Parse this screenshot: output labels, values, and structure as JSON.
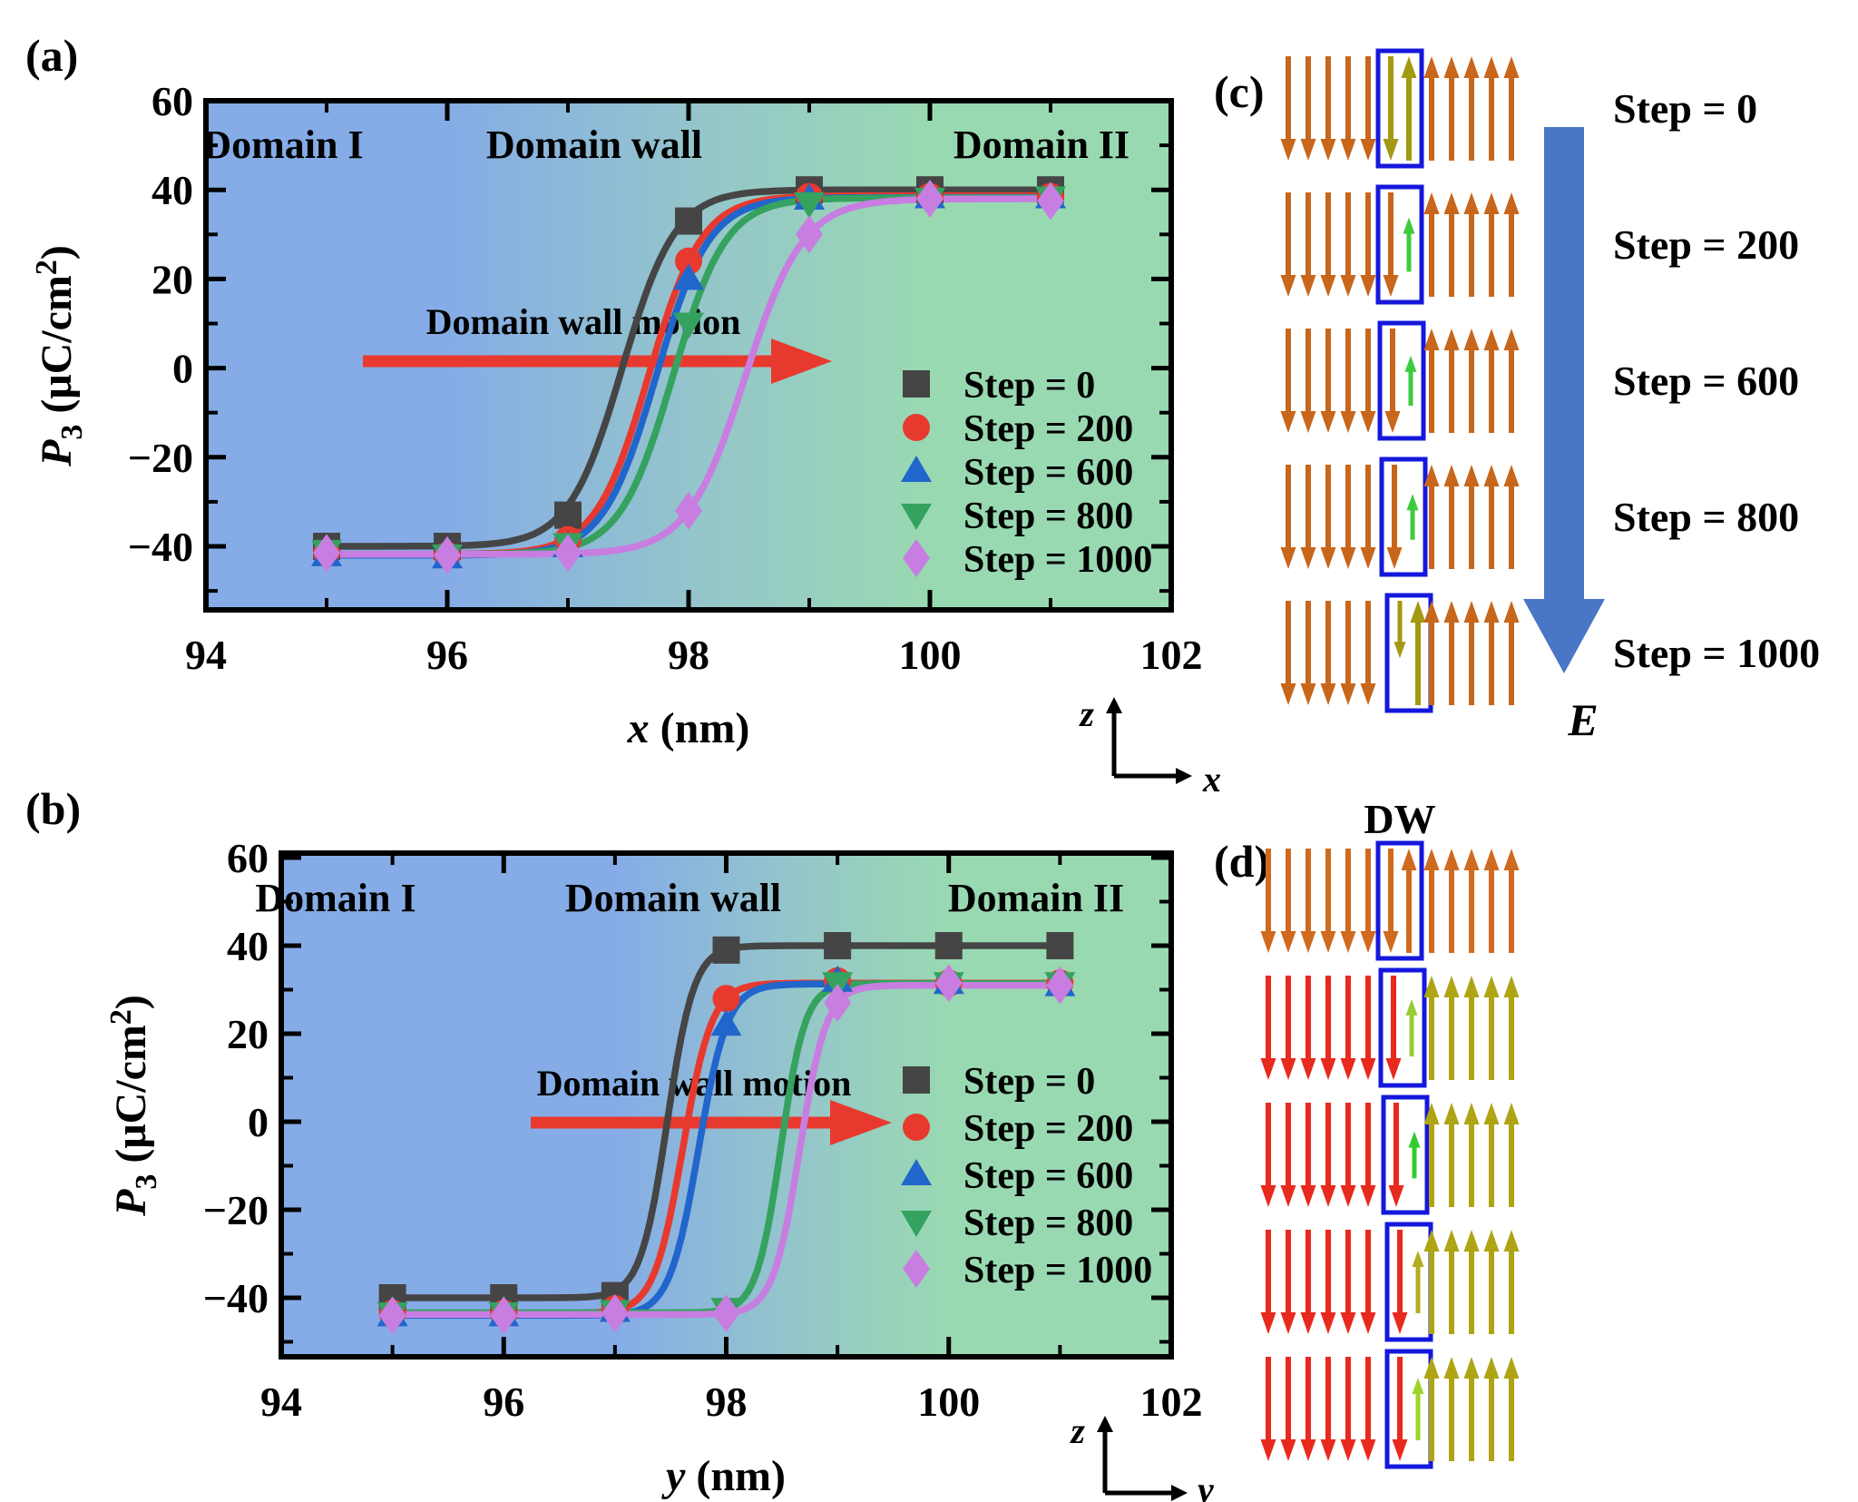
{
  "figure": {
    "bg": "#ffffff"
  },
  "colors": {
    "region_blue": "#85ACE6",
    "region_teal": "#95C6CA",
    "region_green": "#99D9B1",
    "domain_text_blue": "#2A5C9C",
    "domain_text_green": "#2E6E55",
    "annotation_red": "#E8392F",
    "dw_box": "#1418DC",
    "dw_text": "#1A1AE8",
    "e_arrow": "#4A76C6",
    "axis_black": "#000000"
  },
  "panels": {
    "a": {
      "label": "(a)",
      "regions": [
        {
          "text": "Domain I",
          "color": "#2A5C9C"
        },
        {
          "text": "Domain wall",
          "color": "#2A5C9C"
        },
        {
          "text": "Domain II",
          "color": "#2E6E55"
        }
      ],
      "annotation": {
        "text": "Domain wall motion",
        "color": "#E8392F"
      },
      "x_title_var": "x",
      "x_title_unit": " (nm)",
      "y_title": {
        "var": "P",
        "sub": "3",
        "mid": " (μC/cm",
        "sup": "2",
        "end": ")"
      }
    },
    "b": {
      "label": "(b)",
      "regions": [
        {
          "text": "Domain I",
          "color": "#2A5C9C"
        },
        {
          "text": "Domain wall",
          "color": "#2A5C9C"
        },
        {
          "text": "Domain II",
          "color": "#2E6E55"
        }
      ],
      "annotation": {
        "text": "Domain wall motion",
        "color": "#E8392F"
      },
      "x_title_var": "y",
      "x_title_unit": " (nm)",
      "y_title": {
        "var": "P",
        "sub": "3",
        "mid": " (μC/cm",
        "sup": "2",
        "end": ")"
      }
    },
    "c": {
      "label": "(c)",
      "step_labels": [
        "Step = 0",
        "Step = 200",
        "Step = 600",
        "Step = 800",
        "Step = 1000"
      ],
      "field_label": "E",
      "axis": {
        "v": "z",
        "h": "x"
      },
      "rows": [
        {
          "step": "Step = 0",
          "left": {
            "count": 5,
            "color": "#C8661B"
          },
          "box": {
            "dx": 0,
            "arrows": [
              {
                "dir": "down",
                "color": "#A39913",
                "frac": 1
              },
              {
                "dir": "up",
                "color": "#A39913",
                "frac": 1
              }
            ]
          },
          "right": {
            "count": 5,
            "color": "#C8661B"
          }
        },
        {
          "step": "Step = 200",
          "left": {
            "count": 5,
            "color": "#C8661B"
          },
          "box": {
            "dx": 0,
            "arrows": [
              {
                "dir": "down",
                "color": "#C8661B",
                "frac": 1
              },
              {
                "dir": "up",
                "color": "#3DCB3D",
                "frac": 0.52
              }
            ]
          },
          "right": {
            "count": 5,
            "color": "#C8661B"
          }
        },
        {
          "step": "Step = 600",
          "left": {
            "count": 5,
            "color": "#C8661B"
          },
          "box": {
            "dx": 2,
            "arrows": [
              {
                "dir": "down",
                "color": "#C8661B",
                "frac": 1
              },
              {
                "dir": "up",
                "color": "#3DCB3D",
                "frac": 0.48
              }
            ]
          },
          "right": {
            "count": 5,
            "color": "#C8661B"
          }
        },
        {
          "step": "Step = 800",
          "left": {
            "count": 5,
            "color": "#C8661B"
          },
          "box": {
            "dx": 4,
            "arrows": [
              {
                "dir": "down",
                "color": "#C8661B",
                "frac": 1
              },
              {
                "dir": "up",
                "color": "#3DCB3D",
                "frac": 0.44
              }
            ]
          },
          "right": {
            "count": 5,
            "color": "#C8661B"
          }
        },
        {
          "step": "Step = 1000",
          "left": {
            "count": 5,
            "color": "#C8661B"
          },
          "box": {
            "dx": 10,
            "arrows": [
              {
                "dir": "down",
                "color": "#A39913",
                "frac": 0.55,
                "align": "top"
              },
              {
                "dir": "up",
                "color": "#A39913",
                "frac": 1
              }
            ]
          },
          "right": {
            "count": 5,
            "color": "#C8661B"
          }
        }
      ]
    },
    "d": {
      "label": "(d)",
      "dw": "DW",
      "axis": {
        "v": "z",
        "h": "y"
      },
      "rows": [
        {
          "left": {
            "count": 6,
            "color": "#D06A1E"
          },
          "box": {
            "dx": 0,
            "arrows": [
              {
                "dir": "down",
                "color": "#D06A1E",
                "frac": 1
              },
              {
                "dir": "up",
                "color": "#D06A1E",
                "frac": 1
              }
            ]
          },
          "right": {
            "count": 5,
            "color": "#D06A1E"
          }
        },
        {
          "left": {
            "count": 6,
            "color": "#E8291D"
          },
          "box": {
            "dx": 3,
            "arrows": [
              {
                "dir": "down",
                "color": "#E8291D",
                "frac": 1
              },
              {
                "dir": "up",
                "color": "#99CC33",
                "frac": 0.55
              }
            ]
          },
          "right": {
            "count": 5,
            "color": "#AFA414"
          }
        },
        {
          "left": {
            "count": 6,
            "color": "#E8291D"
          },
          "box": {
            "dx": 6,
            "arrows": [
              {
                "dir": "down",
                "color": "#E8291D",
                "frac": 1
              },
              {
                "dir": "up",
                "color": "#2FCC2F",
                "frac": 0.45
              }
            ]
          },
          "right": {
            "count": 5,
            "color": "#AFA414"
          }
        },
        {
          "left": {
            "count": 6,
            "color": "#E8291D"
          },
          "box": {
            "dx": 10,
            "arrows": [
              {
                "dir": "down",
                "color": "#E8291D",
                "frac": 1
              },
              {
                "dir": "up",
                "color": "#B3AC20",
                "frac": 0.6
              }
            ]
          },
          "right": {
            "count": 5,
            "color": "#AFA414"
          }
        },
        {
          "left": {
            "count": 6,
            "color": "#E8291D"
          },
          "box": {
            "dx": 10,
            "arrows": [
              {
                "dir": "down",
                "color": "#E8291D",
                "frac": 1
              },
              {
                "dir": "up",
                "color": "#9ED42A",
                "frac": 0.6
              }
            ]
          },
          "right": {
            "count": 5,
            "color": "#AFA414"
          }
        }
      ]
    }
  },
  "chart_data": [
    {
      "type": "line",
      "panel": "a",
      "title": "",
      "xlabel": "x (nm)",
      "ylabel": "P3 (uC/cm2)",
      "xlim": [
        94,
        102
      ],
      "ylim": [
        -54,
        60
      ],
      "x_major_ticks": [
        94,
        96,
        98,
        100,
        102
      ],
      "x_minor_ticks": [
        95,
        97,
        99,
        101
      ],
      "y_major_ticks": [
        60,
        40,
        20,
        0,
        -20,
        -40
      ],
      "y_minor_ticks": [
        50,
        30,
        10,
        -10,
        -30,
        -50
      ],
      "x": [
        95,
        96,
        97,
        98,
        99,
        100,
        101
      ],
      "legend_position": "inside lower right",
      "grid": false,
      "series": [
        {
          "name": "Step = 0",
          "marker": "square",
          "color": "#454545",
          "values": [
            -40,
            -40,
            -33,
            33,
            40,
            40,
            40
          ],
          "sigmoid": {
            "lo": -40,
            "hi": 40,
            "c": 97.45,
            "w": 0.22
          }
        },
        {
          "name": "Step = 200",
          "marker": "circle",
          "color": "#E8392F",
          "values": [
            -41.5,
            -42,
            -38.5,
            24,
            38.5,
            38.5,
            38.5
          ],
          "sigmoid": {
            "lo": -41.8,
            "hi": 38.7,
            "c": 97.67,
            "w": 0.22
          }
        },
        {
          "name": "Step = 600",
          "marker": "triangle-up",
          "color": "#2166CC",
          "values": [
            -42,
            -42.5,
            -40,
            20,
            38,
            38.3,
            38.3
          ],
          "sigmoid": {
            "lo": -42,
            "hi": 38.3,
            "c": 97.73,
            "w": 0.22
          }
        },
        {
          "name": "Step = 800",
          "marker": "triangle-down",
          "color": "#35A25F",
          "values": [
            -41,
            -42,
            -39.5,
            10,
            37,
            38,
            38.3
          ],
          "sigmoid": {
            "lo": -41.8,
            "hi": 38.2,
            "c": 97.87,
            "w": 0.22
          }
        },
        {
          "name": "Step = 1000",
          "marker": "diamond",
          "color": "#C77EE0",
          "values": [
            -41.5,
            -42,
            -41.5,
            -32,
            30,
            38,
            37.5
          ],
          "sigmoid": {
            "lo": -41.8,
            "hi": 38,
            "c": 98.47,
            "w": 0.24
          }
        }
      ]
    },
    {
      "type": "line",
      "panel": "b",
      "title": "",
      "xlabel": "y (nm)",
      "ylabel": "P3 (uC/cm2)",
      "xlim": [
        94,
        102
      ],
      "ylim": [
        -54,
        60
      ],
      "x_major_ticks": [
        94,
        96,
        98,
        100,
        102
      ],
      "x_minor_ticks": [
        95,
        97,
        99,
        101
      ],
      "y_major_ticks": [
        60,
        40,
        20,
        0,
        -20,
        -40
      ],
      "y_minor_ticks": [
        50,
        30,
        10,
        -10,
        -30,
        -50
      ],
      "x": [
        95,
        96,
        97,
        98,
        99,
        100,
        101
      ],
      "legend_position": "inside lower right",
      "grid": false,
      "series": [
        {
          "name": "Step = 0",
          "marker": "square",
          "color": "#454545",
          "values": [
            -40,
            -40,
            -39.5,
            39,
            40,
            40,
            40
          ],
          "sigmoid": {
            "lo": -40,
            "hi": 40,
            "c": 97.47,
            "w": 0.12
          }
        },
        {
          "name": "Step = 200",
          "marker": "circle",
          "color": "#E8392F",
          "values": [
            -43.5,
            -43.5,
            -42.5,
            28,
            32,
            31.5,
            31.5
          ],
          "sigmoid": {
            "lo": -43.5,
            "hi": 31.5,
            "c": 97.61,
            "w": 0.13
          }
        },
        {
          "name": "Step = 600",
          "marker": "triangle-up",
          "color": "#2166CC",
          "values": [
            -44,
            -44,
            -43,
            22,
            32,
            31.5,
            31
          ],
          "sigmoid": {
            "lo": -44,
            "hi": 31.3,
            "c": 97.75,
            "w": 0.13
          }
        },
        {
          "name": "Step = 800",
          "marker": "triangle-down",
          "color": "#35A25F",
          "values": [
            -43.5,
            -43.5,
            -43,
            -42.5,
            31.5,
            31.5,
            31.5
          ],
          "sigmoid": {
            "lo": -43.4,
            "hi": 31.4,
            "c": 98.49,
            "w": 0.11
          }
        },
        {
          "name": "Step = 1000",
          "marker": "diamond",
          "color": "#C77EE0",
          "values": [
            -44,
            -44,
            -43.5,
            -43.5,
            27,
            31.5,
            31
          ],
          "sigmoid": {
            "lo": -43.8,
            "hi": 31,
            "c": 98.66,
            "w": 0.12
          }
        }
      ]
    }
  ]
}
